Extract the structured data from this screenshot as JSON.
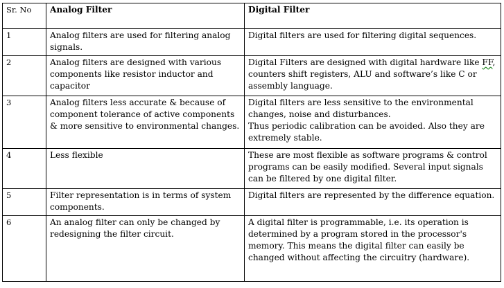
{
  "table": {
    "headers": {
      "sr": "Sr. No",
      "analog": "Analog Filter",
      "digital": "Digital Filter"
    },
    "rows": [
      {
        "sr": "1",
        "analog": "Analog filters are used for filtering analog signals.",
        "digital": "Digital filters are used for filtering digital sequences."
      },
      {
        "sr": "2",
        "analog": "Analog filters are designed with various components like resistor inductor and capacitor",
        "digital_prefix": "Digital Filters are designed with digital hardware like ",
        "digital_ff": "FF",
        "digital_suffix": ", counters shift registers, ALU and software’s like C or assembly language."
      },
      {
        "sr": "3",
        "analog": "Analog filters less accurate & because of component tolerance of active components & more sensitive to environmental changes.",
        "digital_line1": "Digital filters are less sensitive to the environmental changes, noise and disturbances.",
        "digital_line2": "Thus periodic calibration can be avoided. Also they are extremely stable."
      },
      {
        "sr": "4",
        "analog": "Less flexible",
        "digital": "These are most flexible as software programs & control programs can be easily modified. Several input signals can be filtered by one digital filter."
      },
      {
        "sr": "5",
        "analog": "Filter representation is in terms of system components.",
        "digital": "Digital filters are represented by the difference equation."
      },
      {
        "sr": "6",
        "analog": "An analog filter can only be changed by redesigning the filter circuit.",
        "digital": "A digital filter is programmable, i.e. its operation is determined by a program stored in the processor's memory. This means the digital filter can easily be changed without affecting the circuitry (hardware)."
      }
    ]
  }
}
